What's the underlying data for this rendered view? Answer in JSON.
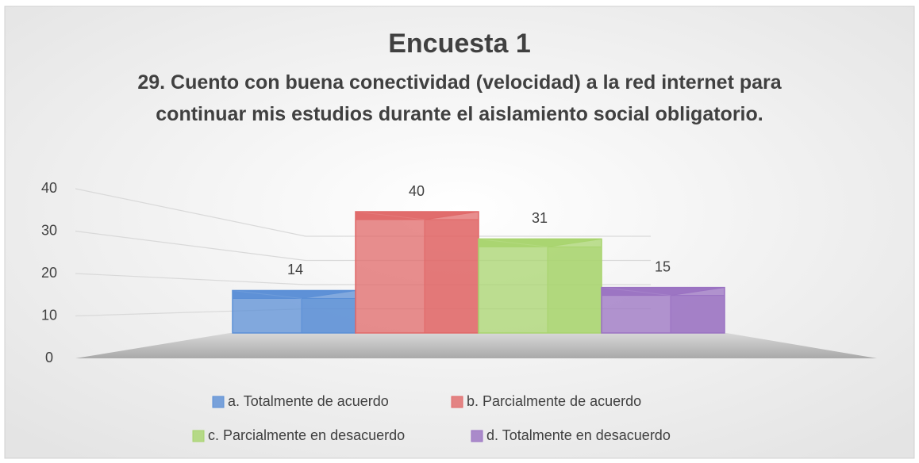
{
  "chart_data": {
    "type": "bar3d",
    "title": "Encuesta 1",
    "subtitle": "29. Cuento con buena conectividad (velocidad) a la red internet para continuar mis estudios durante el aislamiento social obligatorio.",
    "series": [
      {
        "name": "a. Totalmente de acuerdo",
        "color": "#5b8fd6",
        "values": [
          14
        ]
      },
      {
        "name": "b. Parcialmente de acuerdo",
        "color": "#e06868",
        "values": [
          40
        ]
      },
      {
        "name": "c. Parcialmente en desacuerdo",
        "color": "#a8d46e",
        "values": [
          31
        ]
      },
      {
        "name": "d. Totalmente en desacuerdo",
        "color": "#9a72c2",
        "values": [
          15
        ]
      }
    ],
    "ylim": [
      0,
      40
    ],
    "yticks": [
      0,
      10,
      20,
      30,
      40
    ],
    "grid": true,
    "legend": "bottom"
  }
}
